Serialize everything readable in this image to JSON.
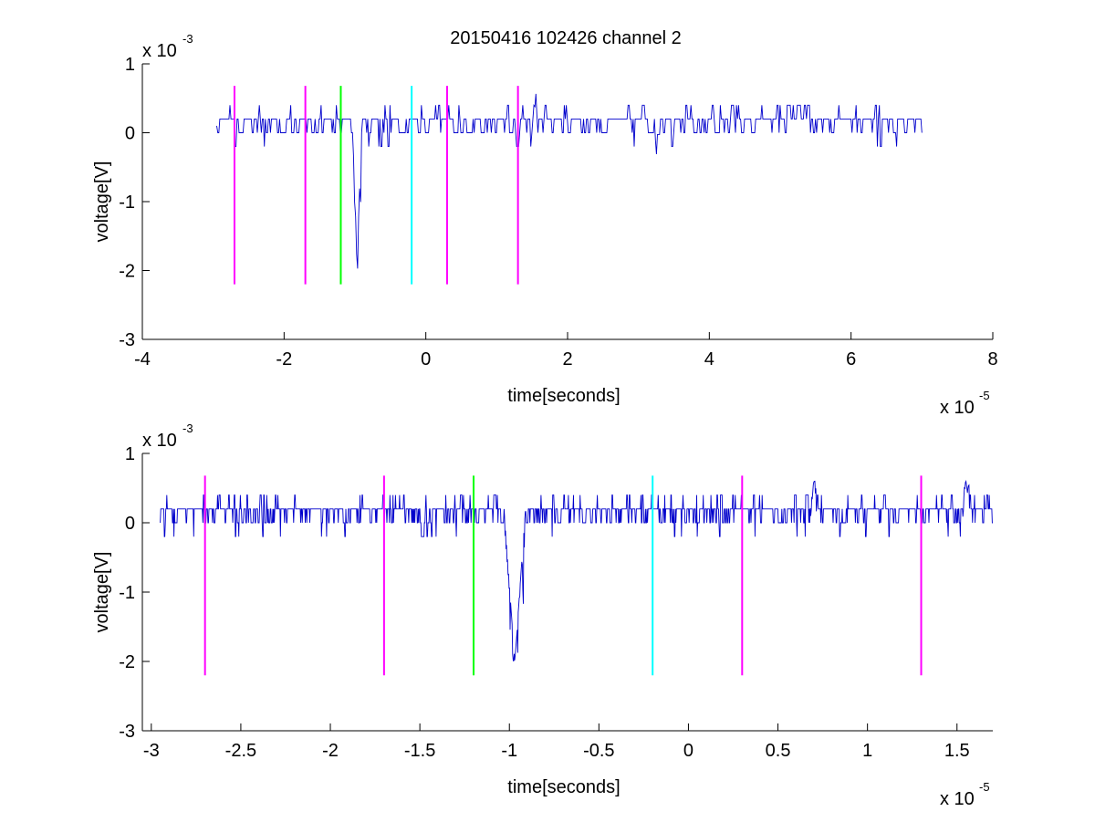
{
  "figure_title": "20150416 102426 channel 2",
  "colors": {
    "signal": "#0000cc",
    "marker_magenta": "#ff00ff",
    "marker_green": "#00ff00",
    "marker_cyan": "#00ffff",
    "axes": "#000000",
    "background": "#ffffff"
  },
  "chart_data": [
    {
      "type": "line",
      "title": "20150416 102426 channel 2",
      "xlabel": "time[seconds]",
      "ylabel": "voltage[V]",
      "x_exponent_label": "x 10",
      "x_exponent_power": "-5",
      "y_exponent_label": "x 10",
      "y_exponent_power": "-3",
      "xlim": [
        -4,
        8
      ],
      "ylim": [
        -3,
        1
      ],
      "x_ticks": [
        -4,
        -2,
        0,
        2,
        4,
        6,
        8
      ],
      "x_tick_labels": [
        "-4",
        "-2",
        "0",
        "2",
        "4",
        "6",
        "8"
      ],
      "y_ticks": [
        -3,
        -2,
        -1,
        0,
        1
      ],
      "y_tick_labels": [
        "-3",
        "-2",
        "-1",
        "0",
        "1"
      ],
      "grid": false,
      "signal": {
        "x_range": [
          -2.95,
          7.0
        ],
        "baseline": 0.1,
        "noise_levels": [
          0,
          0.2,
          0.4
        ],
        "spikes": [
          {
            "x": -0.97,
            "y": -2.0
          },
          {
            "x": 1.55,
            "y": 0.6
          },
          {
            "x": 3.25,
            "y": -0.4
          }
        ]
      },
      "markers": [
        {
          "x": -2.7,
          "color": "magenta",
          "y_range": [
            -2.2,
            0.68
          ]
        },
        {
          "x": -1.7,
          "color": "magenta",
          "y_range": [
            -2.2,
            0.68
          ]
        },
        {
          "x": -1.2,
          "color": "green",
          "y_range": [
            -2.2,
            0.68
          ]
        },
        {
          "x": -0.2,
          "color": "cyan",
          "y_range": [
            -2.2,
            0.68
          ]
        },
        {
          "x": 0.3,
          "color": "magenta",
          "y_range": [
            -2.2,
            0.68
          ]
        },
        {
          "x": 1.3,
          "color": "magenta",
          "y_range": [
            -2.2,
            0.68
          ]
        }
      ]
    },
    {
      "type": "line",
      "title": "",
      "xlabel": "time[seconds]",
      "ylabel": "voltage[V]",
      "x_exponent_label": "x 10",
      "x_exponent_power": "-5",
      "y_exponent_label": "x 10",
      "y_exponent_power": "-3",
      "xlim": [
        -3.05,
        1.7
      ],
      "ylim": [
        -3,
        1
      ],
      "x_ticks": [
        -3,
        -2.5,
        -2,
        -1.5,
        -1,
        -0.5,
        0,
        0.5,
        1,
        1.5
      ],
      "x_tick_labels": [
        "-3",
        "-2.5",
        "-2",
        "-1.5",
        "-1",
        "-0.5",
        "0",
        "0.5",
        "1",
        "1.5"
      ],
      "y_ticks": [
        -3,
        -2,
        -1,
        0,
        1
      ],
      "y_tick_labels": [
        "-3",
        "-2",
        "-1",
        "0",
        "1"
      ],
      "grid": false,
      "signal": {
        "x_range": [
          -2.95,
          1.7
        ],
        "baseline": 0.1,
        "noise_levels": [
          0,
          0.2,
          0.4
        ],
        "spikes": [
          {
            "x": -0.97,
            "y": -2.0
          },
          {
            "x": 0.7,
            "y": 0.6
          },
          {
            "x": 1.55,
            "y": 0.6
          }
        ]
      },
      "markers": [
        {
          "x": -2.7,
          "color": "magenta",
          "y_range": [
            -2.2,
            0.68
          ]
        },
        {
          "x": -1.7,
          "color": "magenta",
          "y_range": [
            -2.2,
            0.68
          ]
        },
        {
          "x": -1.2,
          "color": "green",
          "y_range": [
            -2.2,
            0.68
          ]
        },
        {
          "x": -0.2,
          "color": "cyan",
          "y_range": [
            -2.2,
            0.68
          ]
        },
        {
          "x": 0.3,
          "color": "magenta",
          "y_range": [
            -2.2,
            0.68
          ]
        },
        {
          "x": 1.3,
          "color": "magenta",
          "y_range": [
            -2.2,
            0.68
          ]
        }
      ]
    }
  ]
}
